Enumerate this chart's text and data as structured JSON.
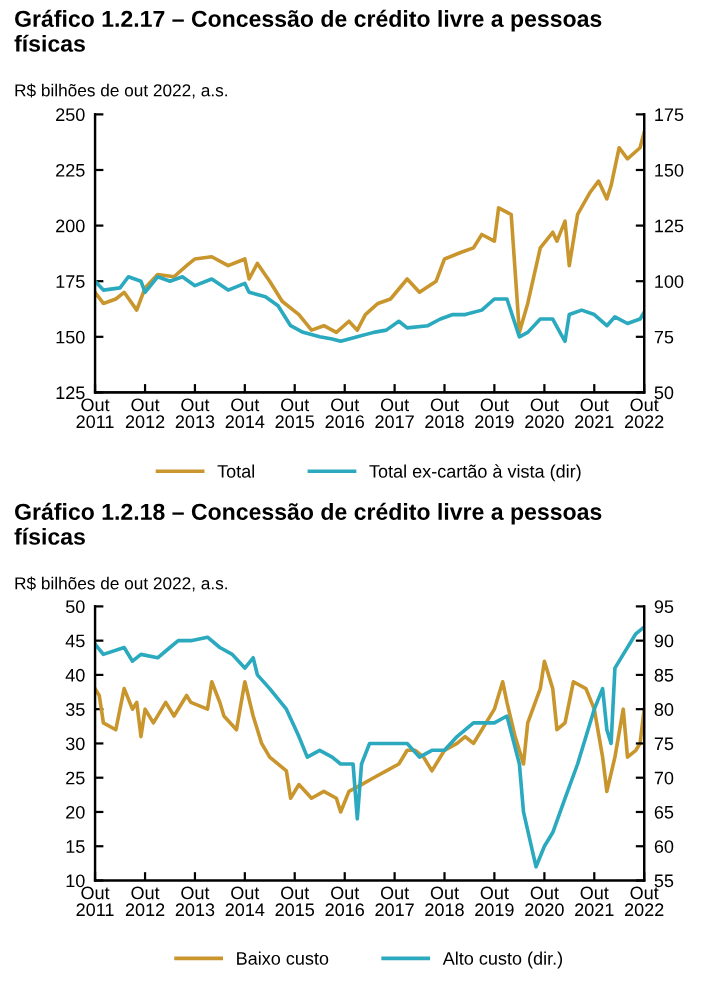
{
  "chart_data": [
    {
      "type": "line",
      "title": "Gráfico 1.2.17 – Concessão de crédito livre a pessoas\nfísicas",
      "subtitle": "R$ bilhões de out 2022, a.s.",
      "xlim": [
        "2011-10",
        "2022-10"
      ],
      "xticks": [
        {
          "value": "2011-10",
          "label": "Out\n2011"
        },
        {
          "value": "2012-10",
          "label": "Out\n2012"
        },
        {
          "value": "2013-10",
          "label": "Out\n2013"
        },
        {
          "value": "2014-10",
          "label": "Out\n2014"
        },
        {
          "value": "2015-10",
          "label": "Out\n2015"
        },
        {
          "value": "2016-10",
          "label": "Out\n2016"
        },
        {
          "value": "2017-10",
          "label": "Out\n2017"
        },
        {
          "value": "2018-10",
          "label": "Out\n2018"
        },
        {
          "value": "2019-10",
          "label": "Out\n2019"
        },
        {
          "value": "2020-10",
          "label": "Out\n2020"
        },
        {
          "value": "2021-10",
          "label": "Out\n2021"
        },
        {
          "value": "2022-10",
          "label": "Out\n2022"
        }
      ],
      "ylim": [
        125,
        250
      ],
      "yticks": [
        125,
        150,
        175,
        200,
        225,
        250
      ],
      "y2lim": [
        50,
        175
      ],
      "y2ticks": [
        50,
        75,
        100,
        125,
        150,
        175
      ],
      "legend": "bottom",
      "grid": false,
      "series": [
        {
          "name": "Total",
          "color": "#c9962e",
          "x": [
            "2011-10",
            "2011-12",
            "2012-03",
            "2012-05",
            "2012-08",
            "2012-10",
            "2013-01",
            "2013-05",
            "2013-08",
            "2013-10",
            "2014-02",
            "2014-06",
            "2014-10",
            "2014-11",
            "2015-01",
            "2015-04",
            "2015-07",
            "2015-11",
            "2016-02",
            "2016-05",
            "2016-08",
            "2016-11",
            "2017-01",
            "2017-03",
            "2017-06",
            "2017-09",
            "2018-01",
            "2018-04",
            "2018-08",
            "2018-10",
            "2019-02",
            "2019-05",
            "2019-07",
            "2019-10",
            "2019-11",
            "2020-02",
            "2020-04",
            "2020-06",
            "2020-09",
            "2020-12",
            "2021-01",
            "2021-03",
            "2021-04",
            "2021-06",
            "2021-09",
            "2021-11",
            "2022-01",
            "2022-02",
            "2022-04",
            "2022-06",
            "2022-09",
            "2022-10"
          ],
          "values": [
            170,
            165,
            167,
            170,
            162,
            172,
            178,
            177,
            182,
            185,
            186,
            182,
            185,
            176,
            183,
            175,
            166,
            160,
            153,
            155,
            152,
            157,
            153,
            160,
            165,
            167,
            176,
            170,
            175,
            185,
            188,
            190,
            196,
            193,
            208,
            205,
            152,
            165,
            190,
            197,
            193,
            202,
            182,
            205,
            215,
            220,
            212,
            218,
            235,
            230,
            235,
            242
          ]
        },
        {
          "name": "Total ex-cartão à vista (dir)",
          "color": "#2aa9bf",
          "axis": "y2",
          "x": [
            "2011-10",
            "2011-12",
            "2012-04",
            "2012-06",
            "2012-09",
            "2012-10",
            "2013-01",
            "2013-04",
            "2013-07",
            "2013-10",
            "2014-02",
            "2014-06",
            "2014-10",
            "2014-11",
            "2015-03",
            "2015-06",
            "2015-09",
            "2015-12",
            "2016-04",
            "2016-07",
            "2016-09",
            "2017-01",
            "2017-05",
            "2017-08",
            "2017-11",
            "2018-01",
            "2018-06",
            "2018-09",
            "2018-12",
            "2019-03",
            "2019-07",
            "2019-10",
            "2020-01",
            "2020-04",
            "2020-06",
            "2020-09",
            "2020-12",
            "2021-02",
            "2021-03",
            "2021-04",
            "2021-07",
            "2021-10",
            "2022-01",
            "2022-03",
            "2022-06",
            "2022-09",
            "2022-10"
          ],
          "values": [
            100,
            96,
            97,
            102,
            100,
            95,
            102,
            100,
            102,
            98,
            101,
            96,
            99,
            95,
            93,
            89,
            80,
            77,
            75,
            74,
            73,
            75,
            77,
            78,
            82,
            79,
            80,
            83,
            85,
            85,
            87,
            92,
            92,
            75,
            77,
            83,
            83,
            76,
            73,
            85,
            87,
            85,
            80,
            84,
            81,
            83,
            86
          ]
        }
      ]
    },
    {
      "type": "line",
      "title": "Gráfico 1.2.18 – Concessão de crédito livre a pessoas\nfísicas",
      "subtitle": "R$ bilhões de out 2022, a.s.",
      "xlim": [
        "2011-10",
        "2022-10"
      ],
      "xticks": [
        {
          "value": "2011-10",
          "label": "Out\n2011"
        },
        {
          "value": "2012-10",
          "label": "Out\n2012"
        },
        {
          "value": "2013-10",
          "label": "Out\n2013"
        },
        {
          "value": "2014-10",
          "label": "Out\n2014"
        },
        {
          "value": "2015-10",
          "label": "Out\n2015"
        },
        {
          "value": "2016-10",
          "label": "Out\n2016"
        },
        {
          "value": "2017-10",
          "label": "Out\n2017"
        },
        {
          "value": "2018-10",
          "label": "Out\n2018"
        },
        {
          "value": "2019-10",
          "label": "Out\n2019"
        },
        {
          "value": "2020-10",
          "label": "Out\n2020"
        },
        {
          "value": "2021-10",
          "label": "Out\n2021"
        },
        {
          "value": "2022-10",
          "label": "Out\n2022"
        }
      ],
      "ylim": [
        10,
        50
      ],
      "yticks": [
        10,
        15,
        20,
        25,
        30,
        35,
        40,
        45,
        50
      ],
      "y2lim": [
        55,
        95
      ],
      "y2ticks": [
        55,
        60,
        65,
        70,
        75,
        80,
        85,
        90,
        95
      ],
      "legend": "bottom",
      "grid": false,
      "series": [
        {
          "name": "Baixo custo",
          "color": "#c9962e",
          "x": [
            "2011-10",
            "2011-11",
            "2011-12",
            "2012-03",
            "2012-05",
            "2012-07",
            "2012-08",
            "2012-09",
            "2012-10",
            "2012-12",
            "2013-03",
            "2013-05",
            "2013-08",
            "2013-09",
            "2014-01",
            "2014-02",
            "2014-04",
            "2014-05",
            "2014-08",
            "2014-10",
            "2014-12",
            "2015-02",
            "2015-04",
            "2015-08",
            "2015-09",
            "2015-11",
            "2016-02",
            "2016-05",
            "2016-08",
            "2016-09",
            "2016-11",
            "2017-02",
            "2017-05",
            "2017-08",
            "2017-11",
            "2018-01",
            "2018-03",
            "2018-05",
            "2018-07",
            "2018-10",
            "2019-01",
            "2019-03",
            "2019-05",
            "2019-08",
            "2019-10",
            "2019-12",
            "2020-01",
            "2020-03",
            "2020-05",
            "2020-06",
            "2020-09",
            "2020-10",
            "2020-12",
            "2021-01",
            "2021-03",
            "2021-05",
            "2021-08",
            "2021-10",
            "2021-12",
            "2022-01",
            "2022-03",
            "2022-05",
            "2022-06",
            "2022-08",
            "2022-09",
            "2022-10"
          ],
          "values": [
            38,
            37,
            33,
            32,
            38,
            35,
            36,
            31,
            35,
            33,
            36,
            34,
            37,
            36,
            35,
            39,
            36,
            34,
            32,
            39,
            34,
            30,
            28,
            26,
            22,
            24,
            22,
            23,
            22,
            20,
            23,
            24,
            25,
            26,
            27,
            29,
            29,
            28,
            26,
            29,
            30,
            31,
            30,
            33,
            35,
            39,
            36,
            31,
            27,
            33,
            38,
            42,
            38,
            32,
            33,
            39,
            38,
            35,
            28,
            23,
            28,
            35,
            28,
            29,
            30,
            35
          ]
        },
        {
          "name": "Alto custo (dir.)",
          "color": "#2aa9bf",
          "axis": "y2",
          "x": [
            "2011-10",
            "2011-12",
            "2012-05",
            "2012-07",
            "2012-09",
            "2013-01",
            "2013-04",
            "2013-06",
            "2013-09",
            "2014-01",
            "2014-04",
            "2014-07",
            "2014-10",
            "2014-12",
            "2015-01",
            "2015-04",
            "2015-08",
            "2015-11",
            "2016-01",
            "2016-04",
            "2016-07",
            "2016-09",
            "2016-12",
            "2017-01",
            "2017-02",
            "2017-04",
            "2017-06",
            "2017-09",
            "2018-01",
            "2018-04",
            "2018-07",
            "2018-10",
            "2019-01",
            "2019-05",
            "2019-08",
            "2019-10",
            "2020-01",
            "2020-04",
            "2020-05",
            "2020-08",
            "2020-10",
            "2020-12",
            "2021-03",
            "2021-06",
            "2021-10",
            "2021-12",
            "2022-01",
            "2022-02",
            "2022-03",
            "2022-05",
            "2022-08",
            "2022-10"
          ],
          "values": [
            89.5,
            88,
            89,
            87,
            88,
            87.5,
            89,
            90,
            90,
            90.5,
            89,
            88,
            86,
            87.5,
            85,
            83,
            80,
            76,
            73,
            74,
            73,
            72,
            72,
            64,
            72,
            75,
            75,
            75,
            75,
            73,
            74,
            74,
            76,
            78,
            78,
            78,
            79,
            72,
            65,
            57,
            60,
            62,
            67,
            72,
            80,
            83,
            77,
            75,
            86,
            88,
            91,
            92
          ]
        }
      ]
    }
  ]
}
